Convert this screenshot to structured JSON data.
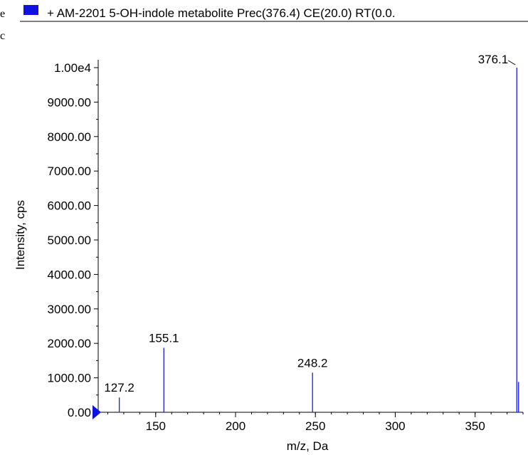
{
  "header": {
    "left_char_1": "e",
    "left_char_2": "c",
    "legend_swatch_color": "#1010e0",
    "legend_text": "+ AM-2201 5-OH-indole metabolite Prec(376.4) CE(20.0) RT(0.0."
  },
  "chart_data": {
    "type": "bar",
    "title": "+ AM-2201 5-OH-indole metabolite Prec(376.4) CE(20.0) RT(0.0.",
    "xlabel": "m/z, Da",
    "ylabel": "Intensity, cps",
    "xlim": [
      114,
      380
    ],
    "ylim": [
      0,
      10000
    ],
    "x_ticks": [
      150,
      200,
      250,
      300,
      350
    ],
    "x_tick_labels": [
      "150",
      "200",
      "250",
      "300",
      "350"
    ],
    "y_ticks": [
      0,
      1000,
      2000,
      3000,
      4000,
      5000,
      6000,
      7000,
      8000,
      9000,
      10000
    ],
    "y_tick_labels": [
      "0.00",
      "1000.00",
      "2000.00",
      "3000.00",
      "4000.00",
      "5000.00",
      "6000.00",
      "7000.00",
      "8000.00",
      "9000.00",
      "1.00e4"
    ],
    "series_color": "#1a1ae6",
    "peaks": [
      {
        "x": 127.2,
        "y": 430,
        "label": "127.2"
      },
      {
        "x": 155.1,
        "y": 1870,
        "label": "155.1"
      },
      {
        "x": 248.2,
        "y": 1150,
        "label": "248.2"
      },
      {
        "x": 376.1,
        "y": 10000,
        "label": "376.1"
      },
      {
        "x": 377.2,
        "y": 880,
        "label": ""
      }
    ]
  }
}
